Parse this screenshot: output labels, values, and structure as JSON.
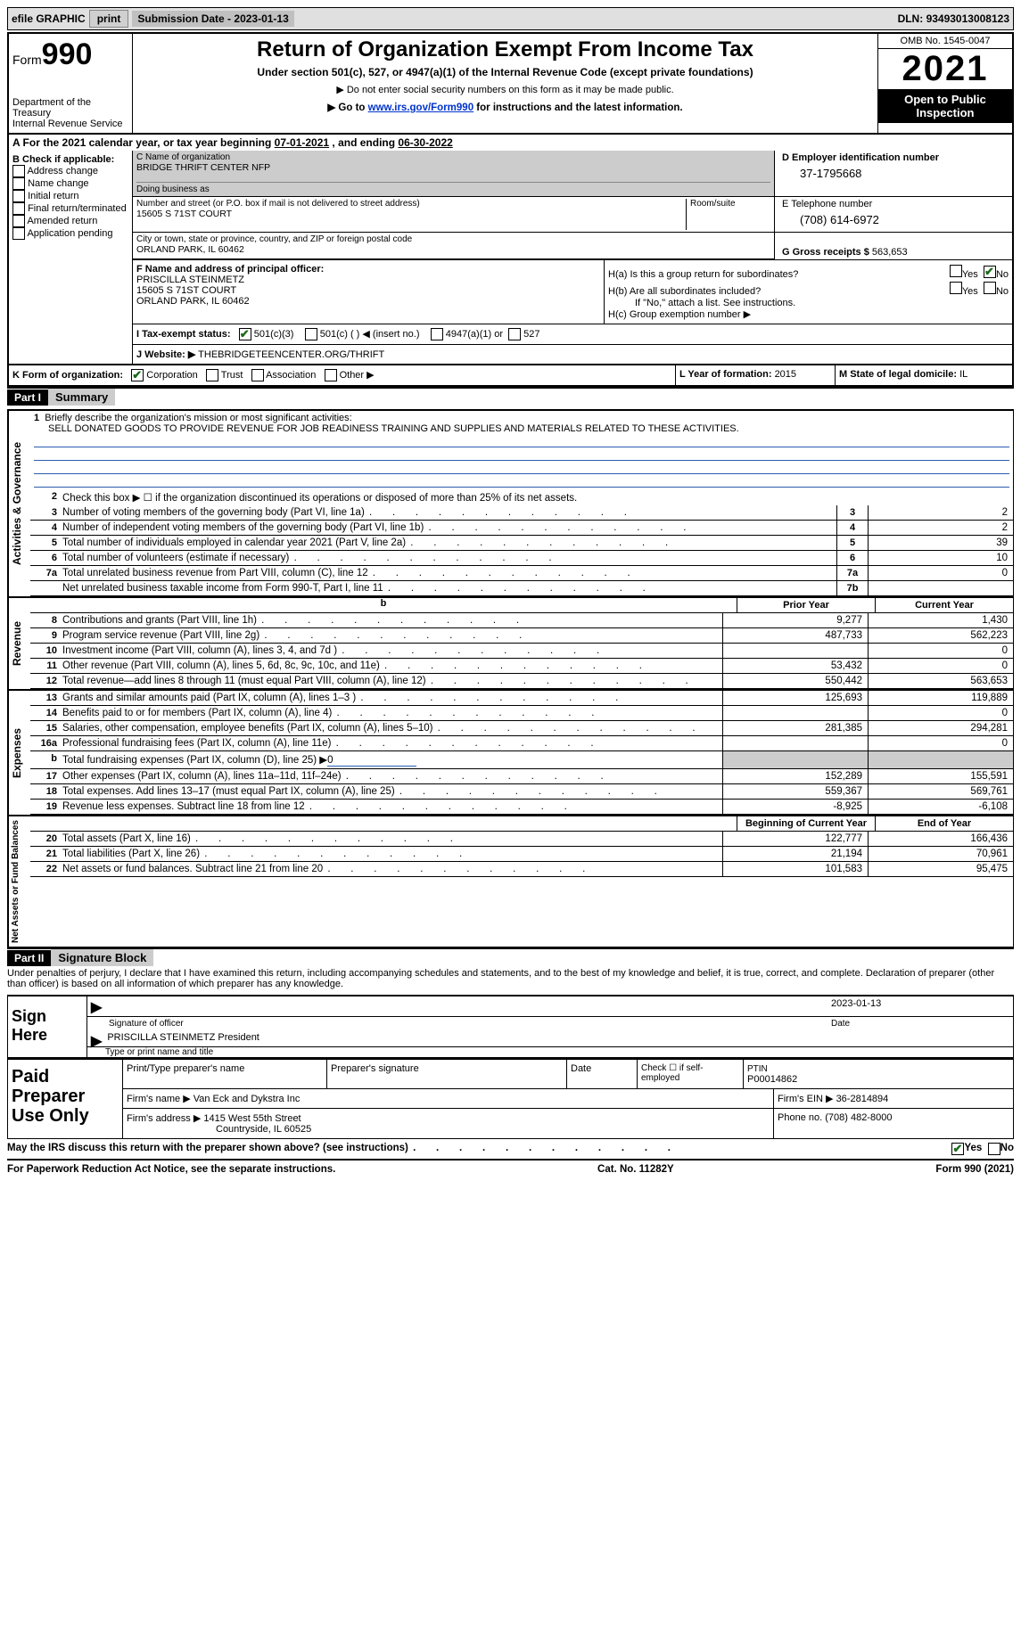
{
  "topbar": {
    "efile": "efile GRAPHIC",
    "print": "print",
    "sub_label": "Submission Date - ",
    "sub_date": "2023-01-13",
    "dln_label": "DLN: ",
    "dln": "93493013008123"
  },
  "header": {
    "form": "Form",
    "formnum": "990",
    "dept": "Department of the Treasury\nInternal Revenue Service",
    "title": "Return of Organization Exempt From Income Tax",
    "sub1": "Under section 501(c), 527, or 4947(a)(1) of the Internal Revenue Code (except private foundations)",
    "sub2": "▶ Do not enter social security numbers on this form as it may be made public.",
    "sub3_pre": "▶ Go to ",
    "sub3_link": "www.irs.gov/Form990",
    "sub3_post": " for instructions and the latest information.",
    "omb": "OMB No. 1545-0047",
    "year": "2021",
    "open": "Open to Public Inspection"
  },
  "rowA": {
    "text_pre": "A For the 2021 calendar year, or tax year beginning ",
    "begin": "07-01-2021",
    "mid": "   , and ending ",
    "end": "06-30-2022"
  },
  "boxB": {
    "label": "B Check if applicable:",
    "items": [
      "Address change",
      "Name change",
      "Initial return",
      "Final return/terminated",
      "Amended return",
      "Application pending"
    ]
  },
  "boxC": {
    "label": "C Name of organization",
    "name": "BRIDGE THRIFT CENTER NFP",
    "dba_label": "Doing business as",
    "addr_label": "Number and street (or P.O. box if mail is not delivered to street address)",
    "room_label": "Room/suite",
    "addr": "15605 S 71ST COURT",
    "city_label": "City or town, state or province, country, and ZIP or foreign postal code",
    "city": "ORLAND PARK, IL  60462"
  },
  "boxD": {
    "label": "D Employer identification number",
    "val": "37-1795668"
  },
  "boxE": {
    "label": "E Telephone number",
    "val": "(708) 614-6972"
  },
  "boxG": {
    "label": "G Gross receipts $ ",
    "val": "563,653"
  },
  "boxF": {
    "label": "F Name and address of principal officer:",
    "name": "PRISCILLA STEINMETZ",
    "addr": "15605 S 71ST COURT",
    "city": "ORLAND PARK, IL  60462"
  },
  "boxH": {
    "a": "H(a)  Is this a group return for subordinates?",
    "b": "H(b)  Are all subordinates included?",
    "b_note": "If \"No,\" attach a list. See instructions.",
    "c": "H(c)  Group exemption number ▶",
    "yes": "Yes",
    "no": "No"
  },
  "boxI": {
    "label": "I    Tax-exempt status:",
    "opts": [
      "501(c)(3)",
      "501(c) (  ) ◀ (insert no.)",
      "4947(a)(1) or",
      "527"
    ]
  },
  "boxJ": {
    "label": "J    Website: ▶",
    "val": "  THEBRIDGETEENCENTER.ORG/THRIFT"
  },
  "boxK": {
    "label": "K Form of organization:",
    "opts": [
      "Corporation",
      "Trust",
      "Association",
      "Other ▶"
    ]
  },
  "boxL": {
    "label": "L Year of formation: ",
    "val": "2015"
  },
  "boxM": {
    "label": "M State of legal domicile: ",
    "val": "IL"
  },
  "part1": {
    "header": "Part I",
    "title": "Summary",
    "q1_label": "Briefly describe the organization's mission or most significant activities:",
    "q1_text": "SELL DONATED GOODS TO PROVIDE REVENUE FOR JOB READINESS TRAINING AND SUPPLIES AND MATERIALS RELATED TO THESE ACTIVITIES.",
    "q2": "Check this box ▶ ☐  if the organization discontinued its operations or disposed of more than 25% of its net assets.",
    "sideA": "Activities & Governance",
    "sideR": "Revenue",
    "sideE": "Expenses",
    "sideN": "Net Assets or Fund Balances",
    "py": "Prior Year",
    "cy": "Current Year",
    "bcy": "Beginning of Current Year",
    "eoy": "End of Year",
    "lines_gov": [
      {
        "n": "3",
        "t": "Number of voting members of the governing body (Part VI, line 1a)",
        "box": "3",
        "v": "2"
      },
      {
        "n": "4",
        "t": "Number of independent voting members of the governing body (Part VI, line 1b)",
        "box": "4",
        "v": "2"
      },
      {
        "n": "5",
        "t": "Total number of individuals employed in calendar year 2021 (Part V, line 2a)",
        "box": "5",
        "v": "39"
      },
      {
        "n": "6",
        "t": "Total number of volunteers (estimate if necessary)",
        "box": "6",
        "v": "10"
      },
      {
        "n": "7a",
        "t": "Total unrelated business revenue from Part VIII, column (C), line 12",
        "box": "7a",
        "v": "0"
      },
      {
        "n": "",
        "t": "Net unrelated business taxable income from Form 990-T, Part I, line 11",
        "box": "7b",
        "v": ""
      }
    ],
    "lines_rev": [
      {
        "n": "8",
        "t": "Contributions and grants (Part VIII, line 1h)",
        "py": "9,277",
        "cy": "1,430"
      },
      {
        "n": "9",
        "t": "Program service revenue (Part VIII, line 2g)",
        "py": "487,733",
        "cy": "562,223"
      },
      {
        "n": "10",
        "t": "Investment income (Part VIII, column (A), lines 3, 4, and 7d )",
        "py": "",
        "cy": "0"
      },
      {
        "n": "11",
        "t": "Other revenue (Part VIII, column (A), lines 5, 6d, 8c, 9c, 10c, and 11e)",
        "py": "53,432",
        "cy": "0"
      },
      {
        "n": "12",
        "t": "Total revenue—add lines 8 through 11 (must equal Part VIII, column (A), line 12)",
        "py": "550,442",
        "cy": "563,653"
      }
    ],
    "lines_exp": [
      {
        "n": "13",
        "t": "Grants and similar amounts paid (Part IX, column (A), lines 1–3 )",
        "py": "125,693",
        "cy": "119,889"
      },
      {
        "n": "14",
        "t": "Benefits paid to or for members (Part IX, column (A), line 4)",
        "py": "",
        "cy": "0"
      },
      {
        "n": "15",
        "t": "Salaries, other compensation, employee benefits (Part IX, column (A), lines 5–10)",
        "py": "281,385",
        "cy": "294,281"
      },
      {
        "n": "16a",
        "t": "Professional fundraising fees (Part IX, column (A), line 11e)",
        "py": "",
        "cy": "0"
      },
      {
        "n": "b",
        "t": "Total fundraising expenses (Part IX, column (D), line 25) ▶0",
        "py": "grey",
        "cy": "grey"
      },
      {
        "n": "17",
        "t": "Other expenses (Part IX, column (A), lines 11a–11d, 11f–24e)",
        "py": "152,289",
        "cy": "155,591"
      },
      {
        "n": "18",
        "t": "Total expenses. Add lines 13–17 (must equal Part IX, column (A), line 25)",
        "py": "559,367",
        "cy": "569,761"
      },
      {
        "n": "19",
        "t": "Revenue less expenses. Subtract line 18 from line 12",
        "py": "-8,925",
        "cy": "-6,108"
      }
    ],
    "lines_net": [
      {
        "n": "20",
        "t": "Total assets (Part X, line 16)",
        "py": "122,777",
        "cy": "166,436"
      },
      {
        "n": "21",
        "t": "Total liabilities (Part X, line 26)",
        "py": "21,194",
        "cy": "70,961"
      },
      {
        "n": "22",
        "t": "Net assets or fund balances. Subtract line 21 from line 20",
        "py": "101,583",
        "cy": "95,475"
      }
    ]
  },
  "part2": {
    "header": "Part II",
    "title": "Signature Block",
    "decl": "Under penalties of perjury, I declare that I have examined this return, including accompanying schedules and statements, and to the best of my knowledge and belief, it is true, correct, and complete. Declaration of preparer (other than officer) is based on all information of which preparer has any knowledge.",
    "sign_here": "Sign Here",
    "sig_officer": "Signature of officer",
    "sig_date": "2023-01-13",
    "date_label": "Date",
    "name_title": "PRISCILLA STEINMETZ  President",
    "type_name": "Type or print name and title"
  },
  "paid": {
    "label": "Paid Preparer Use Only",
    "col1": "Print/Type preparer's name",
    "col2": "Preparer's signature",
    "col3": "Date",
    "col4_a": "Check ☐ if self-employed",
    "col5_label": "PTIN",
    "col5": "P00014862",
    "firm_name_l": "Firm's name      ▶ ",
    "firm_name": "Van Eck and Dykstra Inc",
    "firm_ein_l": "Firm's EIN ▶ ",
    "firm_ein": "36-2814894",
    "firm_addr_l": "Firm's address ▶ ",
    "firm_addr": "1415 West 55th Street",
    "firm_city": "Countryside, IL  60525",
    "phone_l": "Phone no. ",
    "phone": "(708) 482-8000"
  },
  "footer": {
    "discuss": "May the IRS discuss this return with the preparer shown above? (see instructions)",
    "yes": "Yes",
    "no": "No",
    "paperwork": "For Paperwork Reduction Act Notice, see the separate instructions.",
    "cat": "Cat. No. 11282Y",
    "form": "Form 990 (2021)"
  }
}
